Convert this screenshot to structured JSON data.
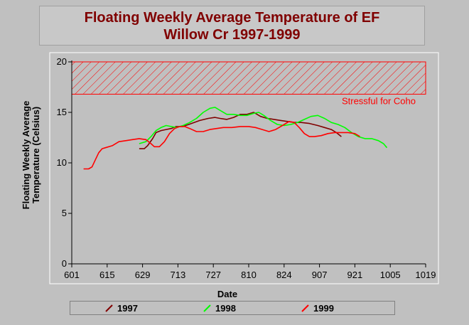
{
  "chart_data": {
    "type": "line",
    "title": [
      "Floating Weekly Average Temperature of EF",
      "Willow Cr 1997-1999"
    ],
    "xlabel": "Date",
    "ylabel": [
      "Floating Weekly Average",
      "Temperature (Celsius)"
    ],
    "xlim": [
      0,
      210
    ],
    "ylim": [
      0,
      20
    ],
    "x_ticks": [
      {
        "x": 0,
        "label": "601"
      },
      {
        "x": 21,
        "label": "615"
      },
      {
        "x": 42,
        "label": "629"
      },
      {
        "x": 63,
        "label": "713"
      },
      {
        "x": 84,
        "label": "727"
      },
      {
        "x": 105,
        "label": "810"
      },
      {
        "x": 126,
        "label": "824"
      },
      {
        "x": 147,
        "label": "907"
      },
      {
        "x": 168,
        "label": "921"
      },
      {
        "x": 189,
        "label": "1005"
      },
      {
        "x": 210,
        "label": "1019"
      }
    ],
    "y_ticks": [
      0,
      5,
      10,
      15,
      20
    ],
    "grid": false,
    "threshold_band": {
      "from": 16.8,
      "to": 20,
      "label": "Stressful for Coho",
      "color": "#ff0000"
    },
    "series": [
      {
        "name": "1997",
        "color": "#800000",
        "points": [
          [
            40,
            11.4
          ],
          [
            43,
            11.4
          ],
          [
            45,
            11.7
          ],
          [
            48,
            12.4
          ],
          [
            50,
            13.0
          ],
          [
            53,
            13.2
          ],
          [
            56,
            13.3
          ],
          [
            59,
            13.4
          ],
          [
            62,
            13.6
          ],
          [
            66,
            13.6
          ],
          [
            71,
            13.9
          ],
          [
            76,
            14.2
          ],
          [
            81,
            14.4
          ],
          [
            85,
            14.5
          ],
          [
            88,
            14.4
          ],
          [
            92,
            14.3
          ],
          [
            96,
            14.5
          ],
          [
            100,
            14.8
          ],
          [
            104,
            14.8
          ],
          [
            108,
            15.0
          ],
          [
            112,
            14.6
          ],
          [
            116,
            14.4
          ],
          [
            120,
            14.3
          ],
          [
            124,
            14.2
          ],
          [
            128,
            14.1
          ],
          [
            132,
            14.0
          ],
          [
            136,
            14.0
          ],
          [
            141,
            13.9
          ],
          [
            146,
            13.7
          ],
          [
            150,
            13.5
          ],
          [
            154,
            13.3
          ],
          [
            157,
            13.0
          ],
          [
            160,
            12.6
          ]
        ]
      },
      {
        "name": "1998",
        "color": "#00ff00",
        "points": [
          [
            40,
            11.9
          ],
          [
            44,
            12.1
          ],
          [
            47,
            12.6
          ],
          [
            50,
            13.2
          ],
          [
            53,
            13.5
          ],
          [
            56,
            13.7
          ],
          [
            59,
            13.6
          ],
          [
            62,
            13.5
          ],
          [
            66,
            13.7
          ],
          [
            70,
            14.0
          ],
          [
            74,
            14.4
          ],
          [
            78,
            15.0
          ],
          [
            82,
            15.4
          ],
          [
            85,
            15.5
          ],
          [
            88,
            15.2
          ],
          [
            92,
            14.8
          ],
          [
            96,
            14.8
          ],
          [
            100,
            14.7
          ],
          [
            104,
            14.7
          ],
          [
            108,
            14.9
          ],
          [
            111,
            15.0
          ],
          [
            114,
            14.7
          ],
          [
            118,
            14.2
          ],
          [
            122,
            13.8
          ],
          [
            126,
            13.7
          ],
          [
            130,
            13.8
          ],
          [
            134,
            14.0
          ],
          [
            138,
            14.3
          ],
          [
            142,
            14.6
          ],
          [
            146,
            14.7
          ],
          [
            150,
            14.4
          ],
          [
            154,
            14.0
          ],
          [
            158,
            13.8
          ],
          [
            162,
            13.5
          ],
          [
            166,
            13.0
          ],
          [
            170,
            12.6
          ],
          [
            174,
            12.4
          ],
          [
            178,
            12.4
          ],
          [
            182,
            12.2
          ],
          [
            185,
            11.9
          ],
          [
            187,
            11.5
          ]
        ]
      },
      {
        "name": "1999",
        "color": "#ff0000",
        "points": [
          [
            7,
            9.4
          ],
          [
            10,
            9.4
          ],
          [
            12,
            9.6
          ],
          [
            14,
            10.3
          ],
          [
            16,
            11.0
          ],
          [
            18,
            11.4
          ],
          [
            20,
            11.5
          ],
          [
            24,
            11.7
          ],
          [
            28,
            12.1
          ],
          [
            32,
            12.2
          ],
          [
            36,
            12.3
          ],
          [
            40,
            12.4
          ],
          [
            44,
            12.3
          ],
          [
            47,
            11.9
          ],
          [
            49,
            11.6
          ],
          [
            52,
            11.6
          ],
          [
            55,
            12.1
          ],
          [
            58,
            12.9
          ],
          [
            61,
            13.4
          ],
          [
            64,
            13.6
          ],
          [
            67,
            13.6
          ],
          [
            70,
            13.4
          ],
          [
            74,
            13.1
          ],
          [
            78,
            13.1
          ],
          [
            82,
            13.3
          ],
          [
            86,
            13.4
          ],
          [
            90,
            13.5
          ],
          [
            95,
            13.5
          ],
          [
            100,
            13.6
          ],
          [
            105,
            13.6
          ],
          [
            109,
            13.5
          ],
          [
            113,
            13.3
          ],
          [
            117,
            13.1
          ],
          [
            121,
            13.3
          ],
          [
            125,
            13.7
          ],
          [
            129,
            14.1
          ],
          [
            132,
            14.0
          ],
          [
            135,
            13.5
          ],
          [
            138,
            12.9
          ],
          [
            141,
            12.6
          ],
          [
            144,
            12.6
          ],
          [
            148,
            12.7
          ],
          [
            152,
            12.9
          ],
          [
            156,
            13.0
          ],
          [
            160,
            13.0
          ],
          [
            164,
            13.0
          ],
          [
            168,
            12.9
          ],
          [
            171,
            12.6
          ]
        ]
      }
    ],
    "legend_position": "bottom"
  }
}
